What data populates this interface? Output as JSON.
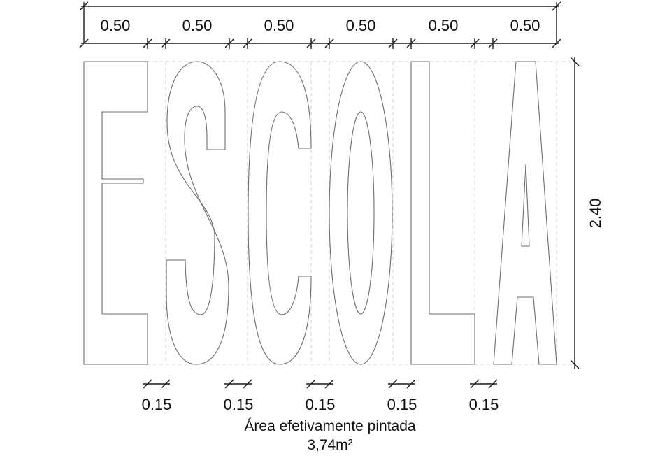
{
  "word": "ESCOLA",
  "letters": [
    {
      "char": "E",
      "name": "letter-e"
    },
    {
      "char": "S",
      "name": "letter-s"
    },
    {
      "char": "C",
      "name": "letter-c"
    },
    {
      "char": "O",
      "name": "letter-o"
    },
    {
      "char": "L",
      "name": "letter-l"
    },
    {
      "char": "A",
      "name": "letter-a"
    }
  ],
  "dimensions": {
    "letter_widths": [
      "0.50",
      "0.50",
      "0.50",
      "0.50",
      "0.50",
      "0.50"
    ],
    "gaps": [
      "0.15",
      "0.15",
      "0.15",
      "0.15",
      "0.15"
    ],
    "height": "2.40"
  },
  "caption": {
    "line1": "Área efetivamente pintada",
    "line2": "3,74m²"
  },
  "colors": {
    "outline": "#6e6e6e",
    "dimension_line": "#1a1a1a",
    "guide_dashed": "#c8c8c8",
    "text": "#111111"
  }
}
